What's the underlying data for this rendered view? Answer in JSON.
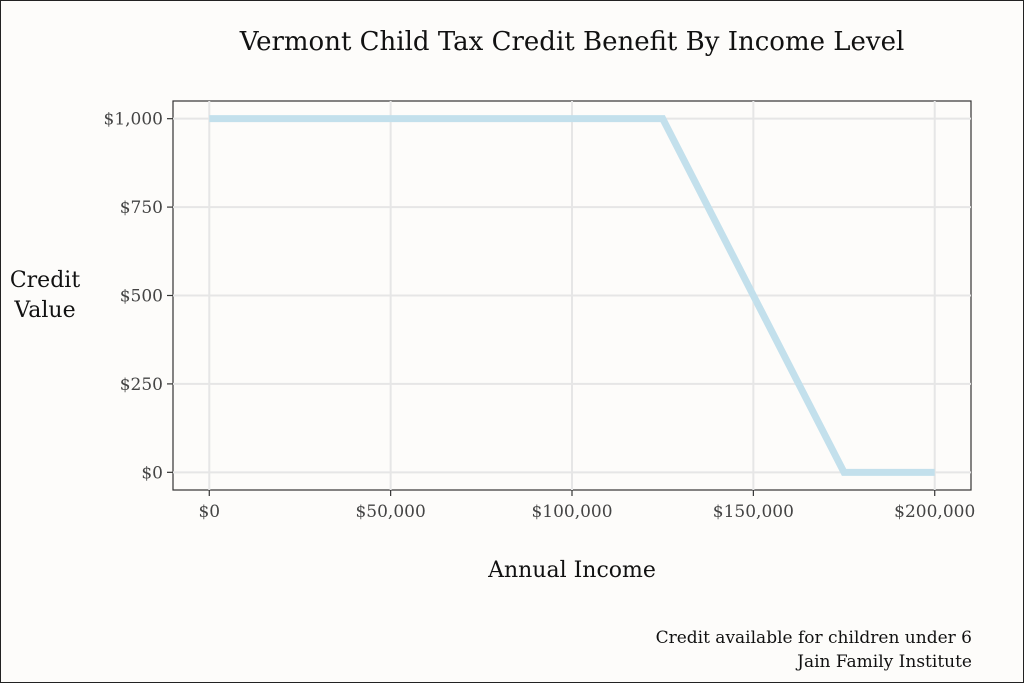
{
  "chart_data": {
    "type": "line",
    "title": "Vermont Child Tax Credit Benefit By Income Level",
    "xlabel": "Annual Income",
    "ylabel_lines": [
      "Credit",
      "Value"
    ],
    "x": [
      0,
      125000,
      175000,
      200000
    ],
    "series": [
      {
        "values": [
          1000,
          1000,
          0,
          0
        ],
        "color": "#c3e0ec"
      }
    ],
    "xlim": [
      -10000,
      210000
    ],
    "ylim": [
      -50,
      1050
    ],
    "xticks": [
      0,
      50000,
      100000,
      150000,
      200000
    ],
    "xtick_labels": [
      "$0",
      "$50,000",
      "$100,000",
      "$150,000",
      "$200,000"
    ],
    "yticks": [
      0,
      250,
      500,
      750,
      1000
    ],
    "ytick_labels": [
      "$0",
      "$250",
      "$500",
      "$750",
      "$1,000"
    ],
    "grid": true,
    "caption_lines": [
      "Credit available for children under 6",
      "Jain Family Institute"
    ]
  }
}
